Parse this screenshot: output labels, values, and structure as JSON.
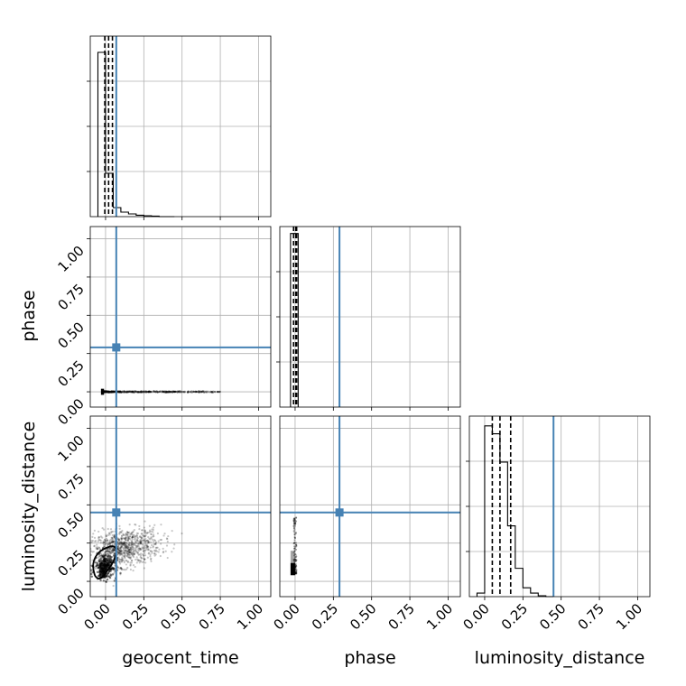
{
  "chart_data": {
    "type": "corner",
    "parameters": [
      "geocent_time",
      "phase",
      "luminosity_distance"
    ],
    "xlabels": [
      "geocent_time",
      "phase",
      "luminosity_distance"
    ],
    "ylabels": [
      "",
      "phase",
      "luminosity_distance"
    ],
    "tick_values": [
      0.0,
      0.25,
      0.5,
      0.75,
      1.0
    ],
    "tick_labels": [
      "0.00",
      "0.25",
      "0.50",
      "0.75",
      "1.00"
    ],
    "axis_range": [
      -0.1,
      1.08
    ],
    "grid": true,
    "truth_color": "#4682b4",
    "truths": {
      "geocent_time": 0.07,
      "phase": 0.29,
      "luminosity_distance": 0.45
    },
    "quantiles": {
      "geocent_time": [
        -0.005,
        0.02,
        0.045
      ],
      "phase": [
        -0.01,
        0.005,
        0.01
      ],
      "luminosity_distance": [
        0.05,
        0.1,
        0.17
      ]
    },
    "histograms": {
      "geocent_time": {
        "edges": [
          -0.05,
          0.0,
          0.05,
          0.1,
          0.15,
          0.2,
          0.25,
          0.3,
          0.35,
          0.4,
          0.45
        ],
        "counts": [
          0.91,
          0.24,
          0.05,
          0.025,
          0.015,
          0.008,
          0.005,
          0.003,
          0.0,
          0.0
        ],
        "ylim": [
          0,
          1.0
        ]
      },
      "phase": {
        "edges": [
          -0.03,
          0.0,
          0.02
        ],
        "counts": [
          1.0,
          1.0
        ],
        "ylim": [
          0,
          1.04
        ]
      },
      "luminosity_distance": {
        "edges": [
          -0.05,
          0.0,
          0.05,
          0.1,
          0.15,
          0.2,
          0.25,
          0.3,
          0.35,
          0.4,
          0.45
        ],
        "counts": [
          0.02,
          0.965,
          0.92,
          0.76,
          0.4,
          0.16,
          0.05,
          0.02,
          0.005,
          0.0
        ],
        "ylim": [
          0,
          1.02
        ]
      }
    },
    "scatter_clouds": {
      "phase_vs_geocent_time": {
        "x_range": [
          -0.02,
          0.75
        ],
        "y_center": 0.0
      },
      "luminosity_distance_vs_geocent_time": {
        "center": [
          0.12,
          0.22
        ],
        "spread": [
          0.12,
          0.06
        ]
      },
      "luminosity_distance_vs_phase": {
        "x_range": [
          -0.01,
          0.01
        ],
        "y_range": [
          0.05,
          0.42
        ]
      }
    }
  }
}
